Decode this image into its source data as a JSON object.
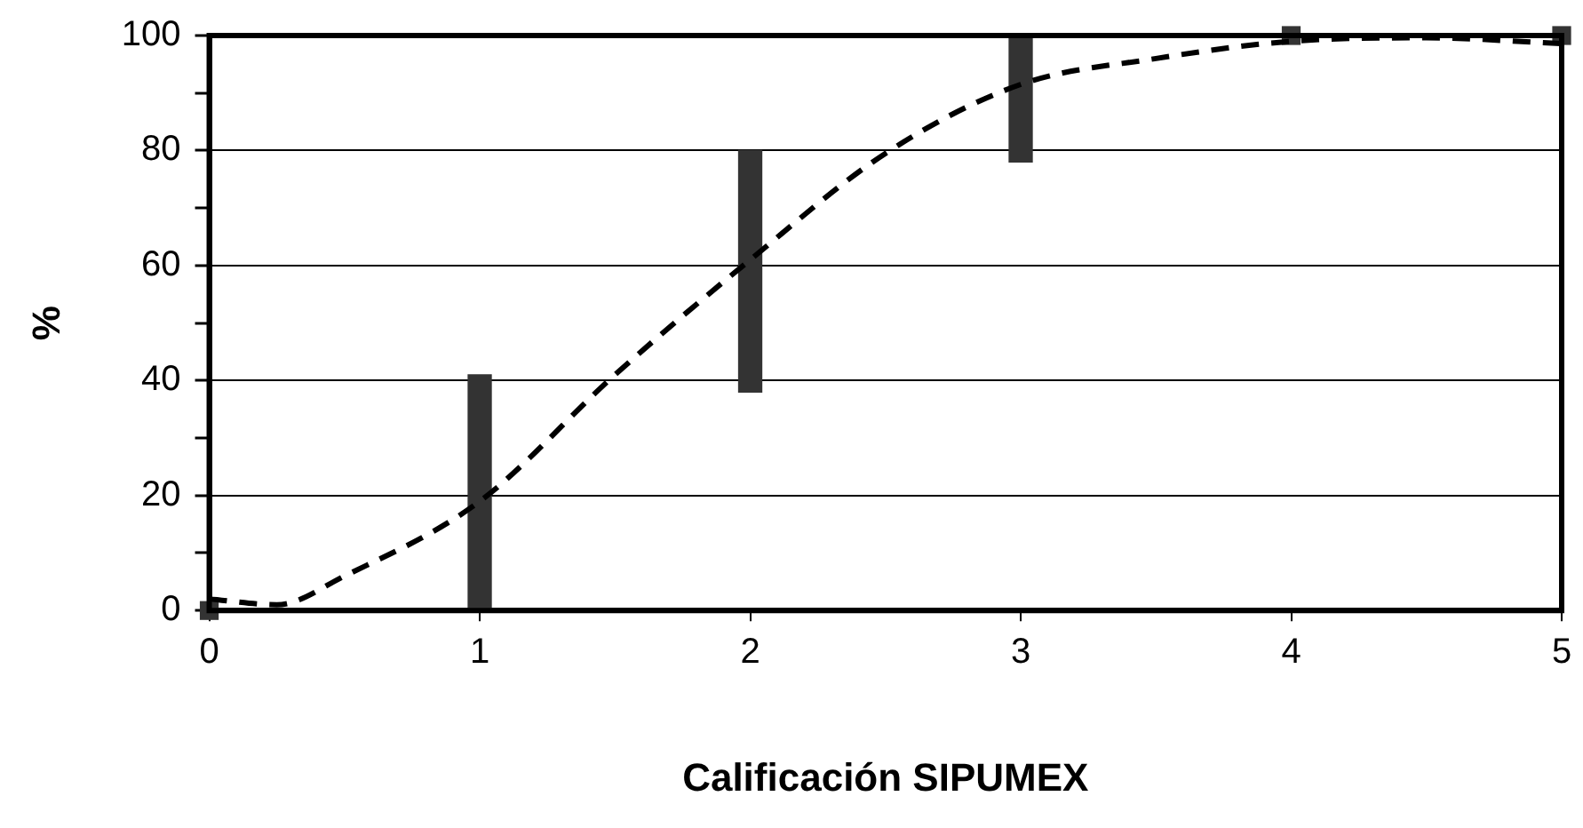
{
  "chart_data": {
    "type": "scatter",
    "xlabel": "Calificación SIPUMEX",
    "ylabel": "%",
    "xlim": [
      0,
      5
    ],
    "xticks": [
      0,
      1,
      2,
      3,
      4,
      5
    ],
    "ylim": [
      0,
      100
    ],
    "yticks": [
      0,
      {
        "value": 10,
        "label": null
      },
      20,
      {
        "value": 30,
        "label": null
      },
      40,
      {
        "value": 50,
        "label": null
      },
      60,
      {
        "value": 70,
        "label": null
      },
      80,
      {
        "value": 90,
        "label": null
      },
      100
    ],
    "grid": "y",
    "series": [
      {
        "type": "bar",
        "color": "#333333",
        "x": [
          1,
          2,
          3
        ],
        "base": [
          0,
          38,
          78
        ],
        "values": [
          41,
          42,
          22
        ]
      },
      {
        "color": "#333333",
        "marker": "square",
        "x": [
          0,
          4,
          5
        ],
        "values": [
          0,
          100,
          100
        ]
      },
      {
        "type": "line",
        "color": "#000000",
        "marker": "none",
        "line_style": "dashed",
        "x": [
          0,
          0.25,
          0.5,
          1,
          1.5,
          2,
          2.5,
          3,
          3.5,
          4,
          4.5,
          5
        ],
        "values": [
          2,
          1,
          6,
          19,
          41,
          61,
          79.5,
          91.5,
          96,
          99,
          99.6,
          98.6
        ]
      }
    ]
  }
}
